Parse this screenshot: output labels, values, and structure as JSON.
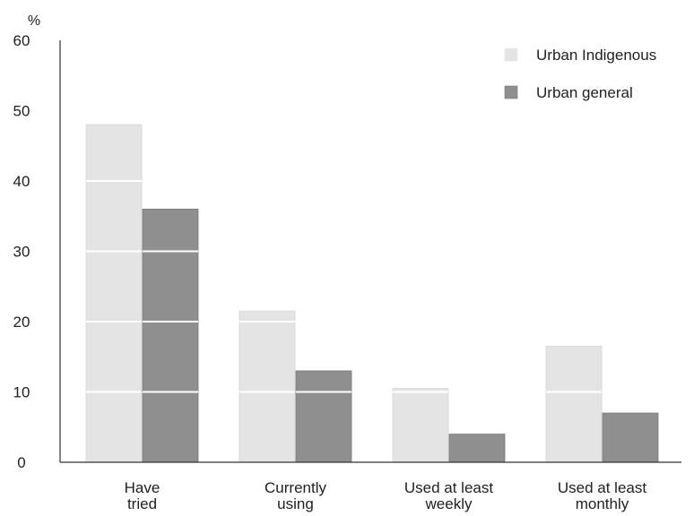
{
  "chart_data": {
    "type": "bar",
    "title": "",
    "ylabel": "%",
    "xlabel": "",
    "ylim": [
      0,
      60
    ],
    "yticks": [
      0,
      10,
      20,
      30,
      40,
      50,
      60
    ],
    "grid": false,
    "legend_position": "top-right",
    "categories": [
      [
        "Have",
        "tried"
      ],
      [
        "Currently",
        "using"
      ],
      [
        "Used at least",
        "weekly"
      ],
      [
        "Used at least",
        "monthly"
      ]
    ],
    "series": [
      {
        "name": "Urban Indigenous",
        "color": "#e4e4e4",
        "values": [
          48,
          21.5,
          10.5,
          16.5
        ]
      },
      {
        "name": "Urban general",
        "color": "#8f8f8f",
        "values": [
          36,
          13,
          4,
          7
        ]
      }
    ]
  }
}
